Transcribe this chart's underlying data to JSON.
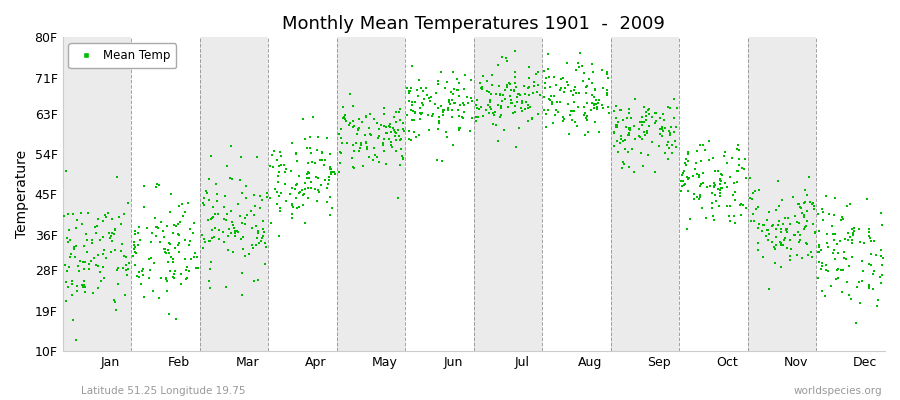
{
  "title": "Monthly Mean Temperatures 1901  -  2009",
  "ylabel": "Temperature",
  "yticks": [
    10,
    19,
    28,
    36,
    45,
    54,
    63,
    71,
    80
  ],
  "ytick_labels": [
    "10F",
    "19F",
    "28F",
    "36F",
    "45F",
    "54F",
    "63F",
    "71F",
    "80F"
  ],
  "ylim": [
    10,
    80
  ],
  "months": [
    "Jan",
    "Feb",
    "Mar",
    "Apr",
    "May",
    "Jun",
    "Jul",
    "Aug",
    "Sep",
    "Oct",
    "Nov",
    "Dec"
  ],
  "dot_color": "#00bb00",
  "dot_size": 2.5,
  "bg_color": "#ffffff",
  "plot_bg_color": "#ffffff",
  "band_color_1": "#ebebeb",
  "band_color_2": "#ffffff",
  "grid_color": "#666666",
  "subtitle": "Latitude 51.25 Longitude 19.75",
  "attribution": "worldspecies.org",
  "legend_label": "Mean Temp",
  "monthly_means_f": [
    31,
    32,
    39,
    49,
    58,
    64,
    67,
    66,
    59,
    48,
    38,
    32
  ],
  "monthly_stds_f": [
    7,
    7,
    6,
    5,
    4,
    4,
    4,
    4,
    4,
    5,
    5,
    6
  ],
  "n_years": 109,
  "seed": 42
}
